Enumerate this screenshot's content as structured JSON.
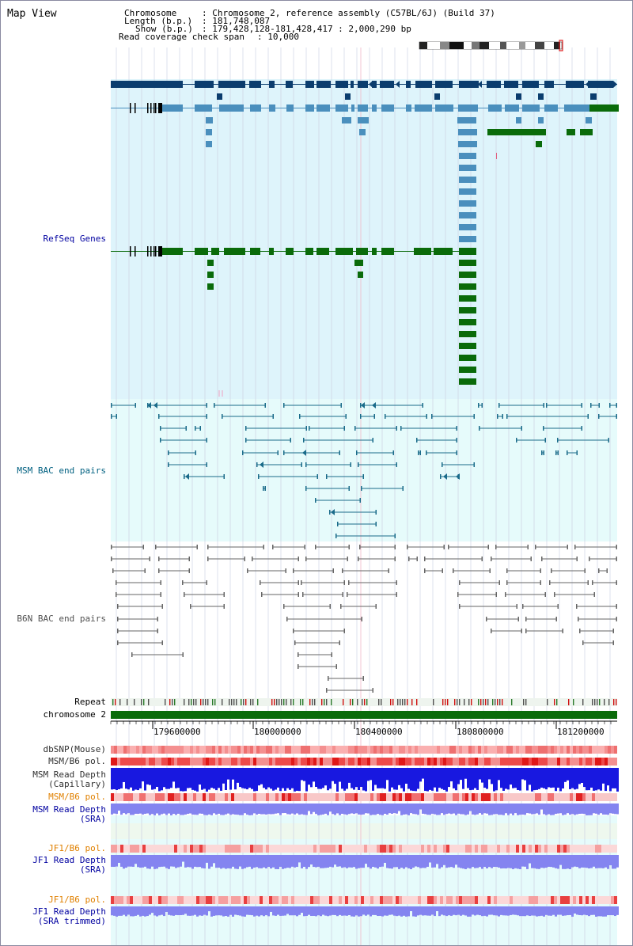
{
  "title": "Map View",
  "info": {
    "chromosome_key": "Chromosome",
    "chromosome_val": ": Chromosome 2, reference assembly (C57BL/6J) (Build 37)",
    "length_key": "Length (b.p.)",
    "length_val": ": 181,748,087",
    "show_key": "Show (b.p.)",
    "show_val": ": 179,428,128-181,428,417 : 2,000,290 bp",
    "coverage_key": "Read coverage check span",
    "coverage_val": ": 10,000"
  },
  "tracks": {
    "refseq": "RefSeq Genes",
    "msm_bac": "MSM BAC end pairs",
    "b6n_bac": "B6N BAC end pairs",
    "repeat": "Repeat",
    "chromosome": "chromosome 2",
    "dbsnp": "dbSNP(Mouse)",
    "msm_b6_pol_1": "MSM/B6 pol.",
    "msm_depth_cap_1": "MSM Read Depth",
    "msm_depth_cap_2": "(Capillary)",
    "msm_b6_pol_2": "MSM/B6 pol.",
    "msm_depth_sra_1": "MSM Read Depth",
    "msm_depth_sra_2": "(SRA)",
    "jf1_b6_pol_1": "JF1/B6 pol.",
    "jf1_depth_sra_1": "JF1 Read Depth",
    "jf1_depth_sra_2": "(SRA)",
    "jf1_b6_pol_2": "JF1/B6 pol.",
    "jf1_depth_trim_1": "JF1 Read Depth",
    "jf1_depth_trim_2": "(SRA trimmed)"
  },
  "axis": {
    "ticks": [
      "179600000",
      "180000000",
      "180400000",
      "180800000",
      "181200000"
    ]
  },
  "colors": {
    "refseq_bg": "#def4fb",
    "msm_bg": "#e6fbfb",
    "refseq_dark": "#0b3d6e",
    "refseq_mid": "#4a8fbd",
    "refseq_green": "#0a6b0a",
    "msm_line": "#1a6b8a",
    "b6n_line": "#666666",
    "chromosome": "#0a6b0a",
    "depth_cap": "#1818e0",
    "depth_sra": "#8484f0",
    "label_blue": "#0000a0",
    "label_orange": "#e08000",
    "label_teal": "#006080"
  }
}
